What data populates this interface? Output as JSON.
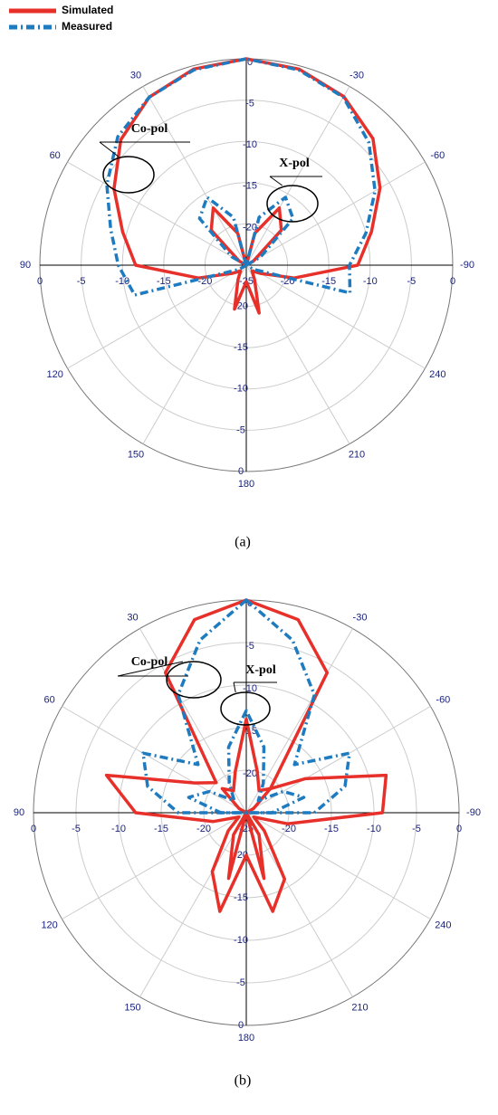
{
  "chart_data": [
    {
      "type": "polar",
      "label": "(a)",
      "theta": [
        0,
        15,
        30,
        45,
        60,
        75,
        90,
        105,
        120,
        135,
        150,
        165,
        180,
        195,
        210,
        225,
        240,
        255,
        270,
        285,
        300,
        315,
        330,
        345
      ],
      "thetaticks": [
        30,
        60,
        90,
        120,
        150,
        180,
        210,
        240,
        -90,
        -60,
        -30
      ],
      "rlim": [
        -25,
        0
      ],
      "rticks": [
        -25,
        -20,
        -15,
        -10,
        -5,
        0
      ],
      "annotations": [
        "Co-pol",
        "X-pol"
      ],
      "series": [
        {
          "name": "Simulated",
          "color": "#e8302a",
          "co_pol": [
            0,
            -0.4,
            -1.5,
            -3.5,
            -6.5,
            -9.5,
            -11.6,
            -19,
            -23,
            -24,
            -23,
            -19.5,
            -23,
            -19,
            -23,
            -24,
            -23,
            -19,
            -11.5,
            -9.3,
            -6.3,
            -3.3,
            -1.4,
            -0.4
          ],
          "x_pol": [
            -25,
            -21,
            -17,
            -19,
            -24,
            -25,
            -25,
            -25,
            -25,
            -25,
            -25,
            -25,
            -25,
            -25,
            -25,
            -25,
            -25,
            -25,
            -25,
            -25,
            -24,
            -19,
            -17,
            -21
          ]
        },
        {
          "name": "Measured",
          "color": "#1f7bc0",
          "co_pol": [
            0,
            -0.5,
            -1.5,
            -3,
            -5.5,
            -8,
            -9.5,
            -11,
            -24,
            -25,
            -25,
            -25,
            -25,
            -25,
            -25,
            -25,
            -24,
            -12,
            -12.5,
            -10,
            -7,
            -4,
            -1.5,
            -0.5
          ],
          "x_pol": [
            -25,
            -19,
            -15.5,
            -17,
            -23,
            -25,
            -25,
            -25,
            -25,
            -25,
            -25,
            -25,
            -25,
            -25,
            -25,
            -25,
            -25,
            -25,
            -25,
            -25,
            -23,
            -17,
            -15.5,
            -19
          ]
        }
      ]
    },
    {
      "type": "polar",
      "label": "(b)",
      "theta": [
        0,
        15,
        30,
        45,
        60,
        75,
        90,
        105,
        120,
        135,
        150,
        165,
        180,
        195,
        210,
        225,
        240,
        255,
        270,
        285,
        300,
        315,
        330,
        345
      ],
      "thetaticks": [
        30,
        60,
        90,
        120,
        150,
        180,
        210,
        240,
        -90,
        -60,
        -30
      ],
      "rlim": [
        -25,
        0
      ],
      "rticks": [
        -25,
        -20,
        -15,
        -10,
        -5,
        0
      ],
      "annotations": [
        "Co-pol",
        "X-pol"
      ],
      "series": [
        {
          "name": "Simulated",
          "color": "#e8302a",
          "co_pol": [
            0,
            -1.5,
            -6,
            -20,
            -18,
            -8,
            -12,
            -21,
            -24,
            -22,
            -17,
            -13,
            -20,
            -13,
            -16,
            -22,
            -24,
            -20,
            -9,
            -8,
            -17,
            -21,
            -6,
            -1.5
          ],
          "x_pol": [
            -14,
            -20,
            -22,
            -21,
            -24,
            -25,
            -25,
            -25,
            -25,
            -25,
            -22,
            -17,
            -25,
            -17,
            -22,
            -25,
            -25,
            -25,
            -25,
            -25,
            -24,
            -21,
            -22,
            -20
          ]
        },
        {
          "name": "Measured",
          "color": "#1f7bc0",
          "co_pol": [
            0,
            -4,
            -9,
            -17,
            -11,
            -13,
            -17,
            -25,
            -25,
            -25,
            -25,
            -25,
            -25,
            -25,
            -25,
            -25,
            -25,
            -25,
            -17,
            -13,
            -11,
            -17,
            -9,
            -4
          ],
          "x_pol": [
            -13,
            -17,
            -21,
            -23,
            -20,
            -18,
            -22,
            -25,
            -25,
            -25,
            -25,
            -25,
            -25,
            -25,
            -25,
            -25,
            -25,
            -25,
            -22,
            -18,
            -20,
            -23,
            -21,
            -17
          ]
        }
      ]
    }
  ]
}
